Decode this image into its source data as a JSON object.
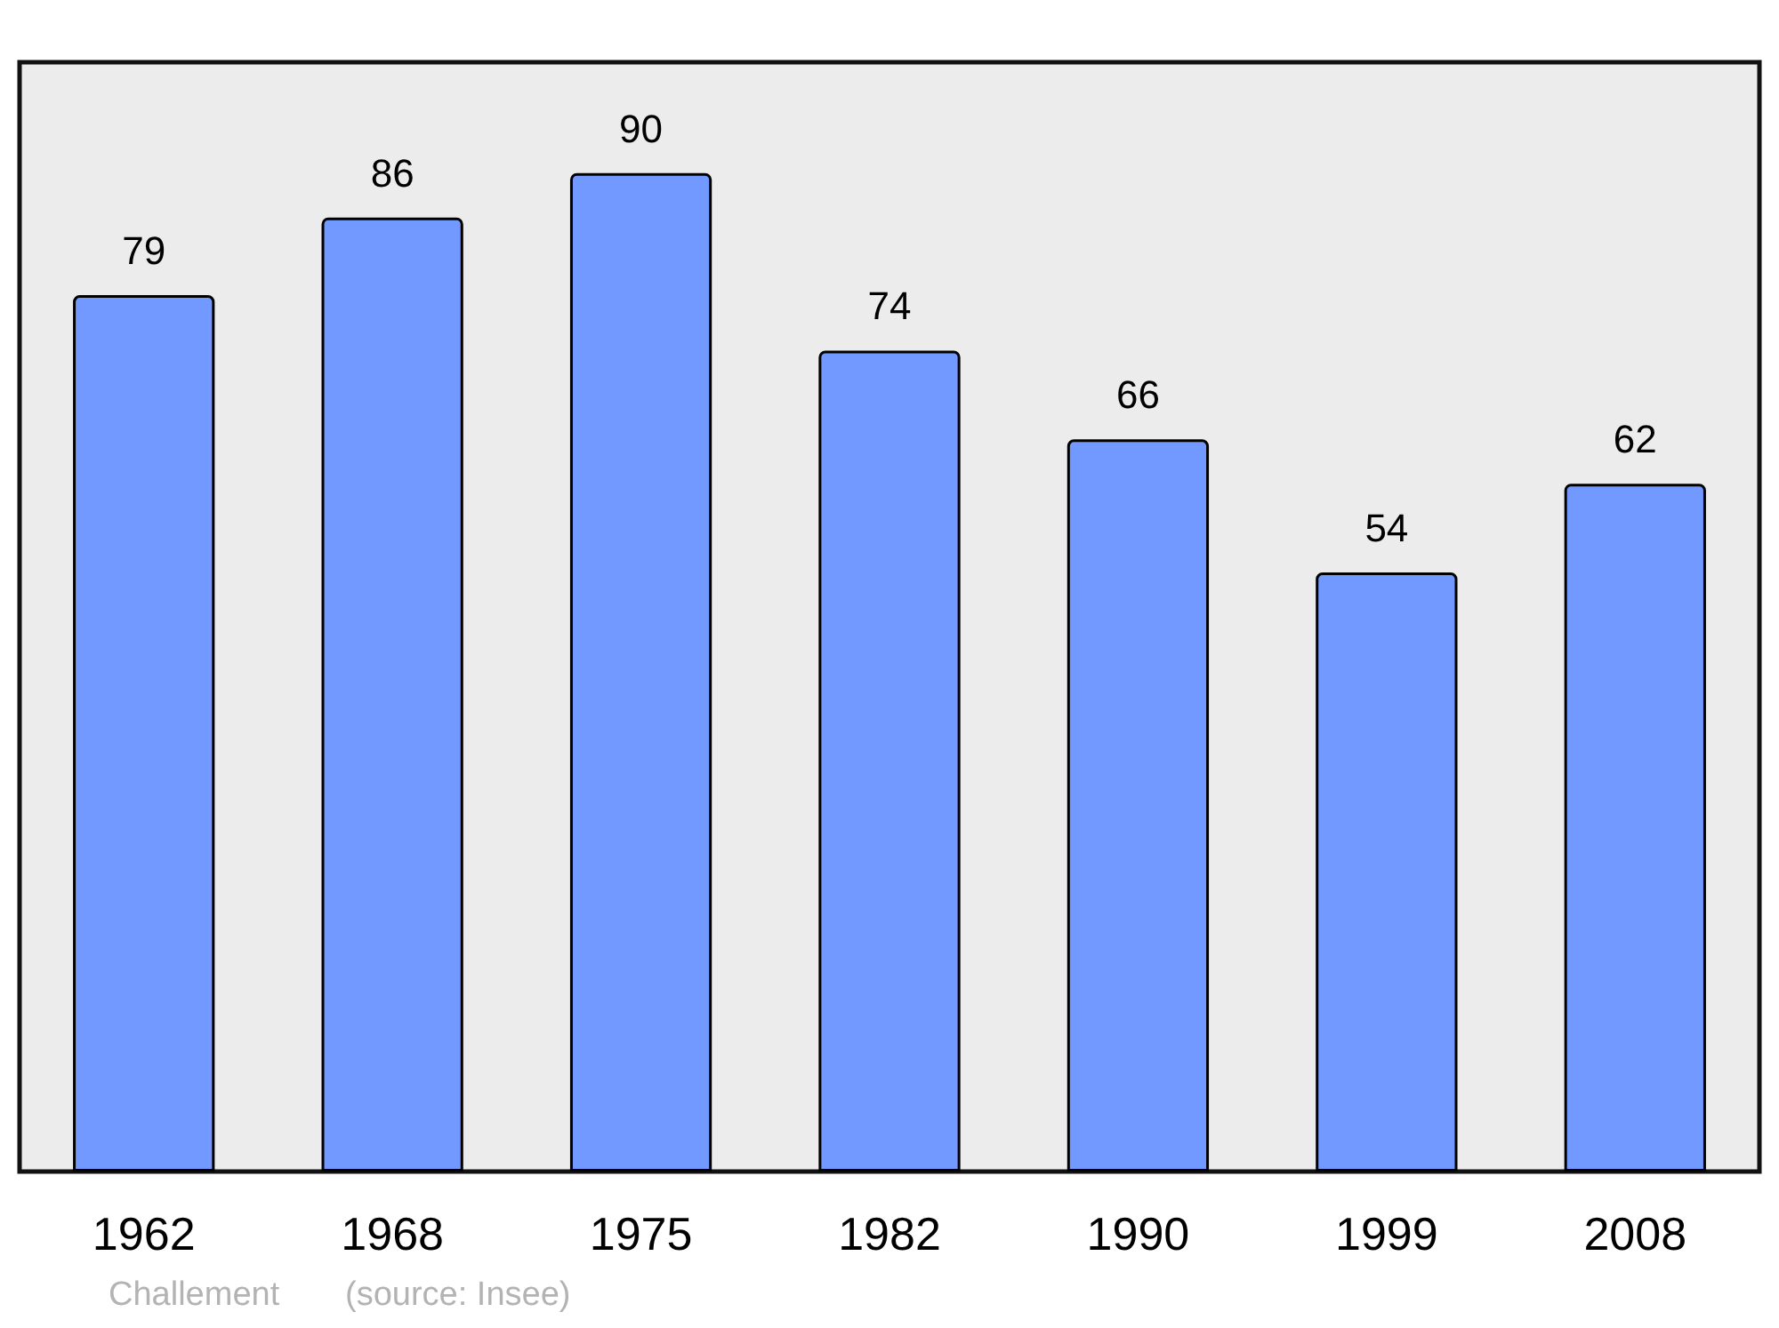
{
  "chart_data": {
    "type": "bar",
    "categories": [
      "1962",
      "1968",
      "1975",
      "1982",
      "1990",
      "1999",
      "2008"
    ],
    "values": [
      79,
      86,
      90,
      74,
      66,
      54,
      62
    ],
    "color": "#7299ff",
    "data_labels": true,
    "grid": false,
    "annotations": [
      "Challement",
      "(source: Insee)"
    ]
  }
}
